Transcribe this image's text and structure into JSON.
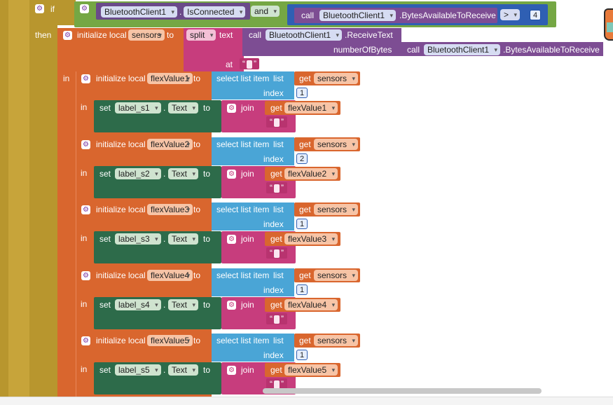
{
  "if_block": {
    "keyword": "if",
    "then_label": "then",
    "bt_component": "BluetoothClient1",
    "is_connected": "IsConnected",
    "and_label": "and",
    "call_label": "call",
    "bytes_method": ".BytesAvailableToReceive",
    "operator": ">",
    "threshold": "4"
  },
  "init_sensors": {
    "label": "initialize local",
    "var_name": "sensors",
    "to_label": "to",
    "split_label": "split",
    "text_label": "text",
    "call_label": "call",
    "bt_component": "BluetoothClient1",
    "receive_method": ".ReceiveText",
    "number_of_bytes_label": "numberOfBytes",
    "call2_label": "call",
    "bytes_method": ".BytesAvailableToReceive",
    "at_label": "at",
    "in_label": "in"
  },
  "flex_blocks": [
    {
      "init": "initialize local",
      "var": "flexValue1",
      "to": "to",
      "select": "select list item",
      "list": "list",
      "get": "get",
      "sensors": "sensors",
      "index_label": "index",
      "index": "1",
      "in": "in",
      "set": "set",
      "label": "label_s1",
      "dot": ".",
      "prop": "Text",
      "join": "join"
    },
    {
      "init": "initialize local",
      "var": "flexValue2",
      "to": "to",
      "select": "select list item",
      "list": "list",
      "get": "get",
      "sensors": "sensors",
      "index_label": "index",
      "index": "2",
      "in": "in",
      "set": "set",
      "label": "label_s2",
      "dot": ".",
      "prop": "Text",
      "join": "join"
    },
    {
      "init": "initialize local",
      "var": "flexValue3",
      "to": "to",
      "select": "select list item",
      "list": "list",
      "get": "get",
      "sensors": "sensors",
      "index_label": "index",
      "index": "1",
      "in": "in",
      "set": "set",
      "label": "label_s3",
      "dot": ".",
      "prop": "Text",
      "join": "join"
    },
    {
      "init": "initialize local",
      "var": "flexValue4",
      "to": "to",
      "select": "select list item",
      "list": "list",
      "get": "get",
      "sensors": "sensors",
      "index_label": "index",
      "index": "1",
      "in": "in",
      "set": "set",
      "label": "label_s4",
      "dot": ".",
      "prop": "Text",
      "join": "join"
    },
    {
      "init": "initialize local",
      "var": "flexValue5",
      "to": "to",
      "select": "select list item",
      "list": "list",
      "get": "get",
      "sensors": "sensors",
      "index_label": "index",
      "index": "1",
      "in": "in",
      "set": "set",
      "label": "label_s5",
      "dot": ".",
      "prop": "Text",
      "join": "join"
    }
  ],
  "colors": {
    "control": "#b8962e",
    "if_green": "#75a744",
    "variable": "#d9662e",
    "text_pink": "#c73d7d",
    "component_purple": "#7d4d93",
    "list_blue": "#4aa5d6",
    "math_blue": "#2f5fb3",
    "set_green": "#2d6b4a"
  }
}
